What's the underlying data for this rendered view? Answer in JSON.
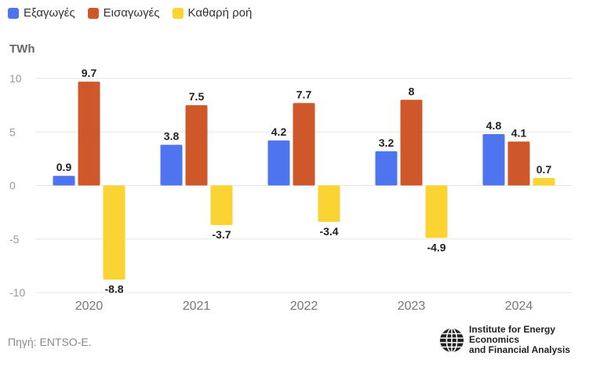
{
  "colors": {
    "exports": "#4F74F0",
    "imports": "#CF582B",
    "net": "#FBD333"
  },
  "legend": {
    "exports": "Εξαγωγές",
    "imports": "Εισαγωγές",
    "net": "Καθαρή ροή"
  },
  "unit_label": "TWh",
  "source_note": "Πηγή: ENTSO-E.",
  "logo": {
    "line1": "Institute for Energy Economics",
    "line2": "and Financial Analysis"
  },
  "chart_data": {
    "type": "bar",
    "categories": [
      "2020",
      "2021",
      "2022",
      "2023",
      "2024"
    ],
    "series": [
      {
        "name": "Εξαγωγές",
        "values": [
          0.9,
          3.8,
          4.2,
          3.2,
          4.8
        ],
        "labels": [
          "0.9",
          "3.8",
          "4.2",
          "3.2",
          "4.8"
        ]
      },
      {
        "name": "Εισαγωγές",
        "values": [
          9.7,
          7.5,
          7.7,
          8,
          4.1
        ],
        "labels": [
          "9.7",
          "7.5",
          "7.7",
          "8",
          "4.1"
        ]
      },
      {
        "name": "Καθαρή ροή",
        "values": [
          -8.8,
          -3.7,
          -3.4,
          -4.9,
          0.7
        ],
        "labels": [
          "-8.8",
          "-3.7",
          "-3.4",
          "-4.9",
          "0.7"
        ]
      }
    ],
    "ylabel": "TWh",
    "ylim": [
      -10,
      10
    ],
    "yticks": [
      10,
      5,
      0,
      -5,
      -10
    ],
    "ytick_labels": [
      "10",
      "5",
      "0",
      "-5",
      "-10"
    ],
    "grid": true,
    "legend_position": "top-left"
  }
}
